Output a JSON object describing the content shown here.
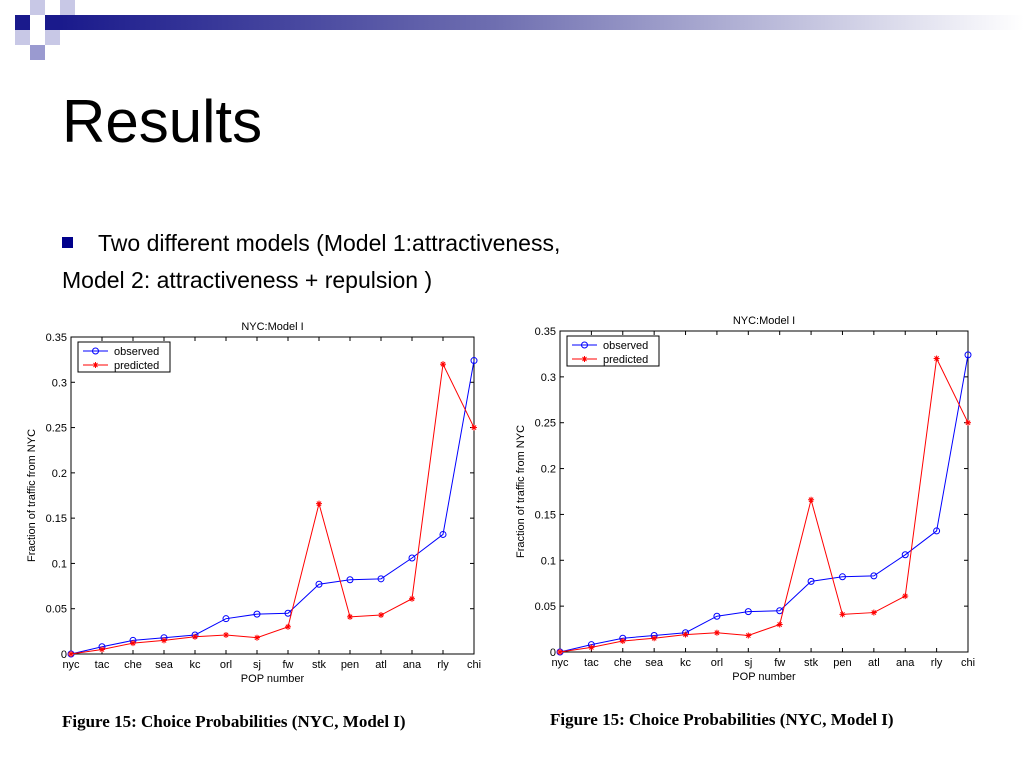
{
  "slide": {
    "title": "Results",
    "bullet": "Two different models (Model 1:attractiveness,",
    "continuation": "Model 2: attractiveness + repulsion )",
    "accent_color": "#00008b"
  },
  "captions": [
    "Figure 15:  Choice Probabilities (NYC, Model I)",
    "Figure 15:  Choice Probabilities (NYC, Model I)"
  ],
  "chart_data": [
    {
      "type": "line",
      "title": "NYC:Model I",
      "xlabel": "POP number",
      "ylabel": "Fraction of traffic from NYC",
      "categories": [
        "nyc",
        "tac",
        "che",
        "sea",
        "kc",
        "orl",
        "sj",
        "fw",
        "stk",
        "pen",
        "atl",
        "ana",
        "rly",
        "chi"
      ],
      "ylim": [
        0,
        0.35
      ],
      "yticks": [
        "0",
        "0.05",
        "0.1",
        "0.15",
        "0.2",
        "0.25",
        "0.3",
        "0.35"
      ],
      "legend_position": "top-left",
      "series": [
        {
          "name": "observed",
          "color": "#0000ff",
          "marker": "circle",
          "values": [
            0.0,
            0.008,
            0.015,
            0.018,
            0.021,
            0.039,
            0.044,
            0.045,
            0.077,
            0.082,
            0.083,
            0.106,
            0.132,
            0.324
          ]
        },
        {
          "name": "predicted",
          "color": "#ff0000",
          "marker": "star",
          "values": [
            0.0,
            0.005,
            0.012,
            0.015,
            0.019,
            0.021,
            0.018,
            0.03,
            0.166,
            0.041,
            0.043,
            0.061,
            0.32,
            0.25
          ]
        }
      ]
    },
    {
      "type": "line",
      "title": "NYC:Model I",
      "xlabel": "POP number",
      "ylabel": "Fraction of traffic from NYC",
      "categories": [
        "nyc",
        "tac",
        "che",
        "sea",
        "kc",
        "orl",
        "sj",
        "fw",
        "stk",
        "pen",
        "atl",
        "ana",
        "rly",
        "chi"
      ],
      "ylim": [
        0,
        0.35
      ],
      "yticks": [
        "0",
        "0.05",
        "0.1",
        "0.15",
        "0.2",
        "0.25",
        "0.3",
        "0.35"
      ],
      "legend_position": "top-left",
      "series": [
        {
          "name": "observed",
          "color": "#0000ff",
          "marker": "circle",
          "values": [
            0.0,
            0.008,
            0.015,
            0.018,
            0.021,
            0.039,
            0.044,
            0.045,
            0.077,
            0.082,
            0.083,
            0.106,
            0.132,
            0.324
          ]
        },
        {
          "name": "predicted",
          "color": "#ff0000",
          "marker": "star",
          "values": [
            0.0,
            0.005,
            0.012,
            0.015,
            0.019,
            0.021,
            0.018,
            0.03,
            0.166,
            0.041,
            0.043,
            0.061,
            0.32,
            0.25
          ]
        }
      ]
    }
  ]
}
